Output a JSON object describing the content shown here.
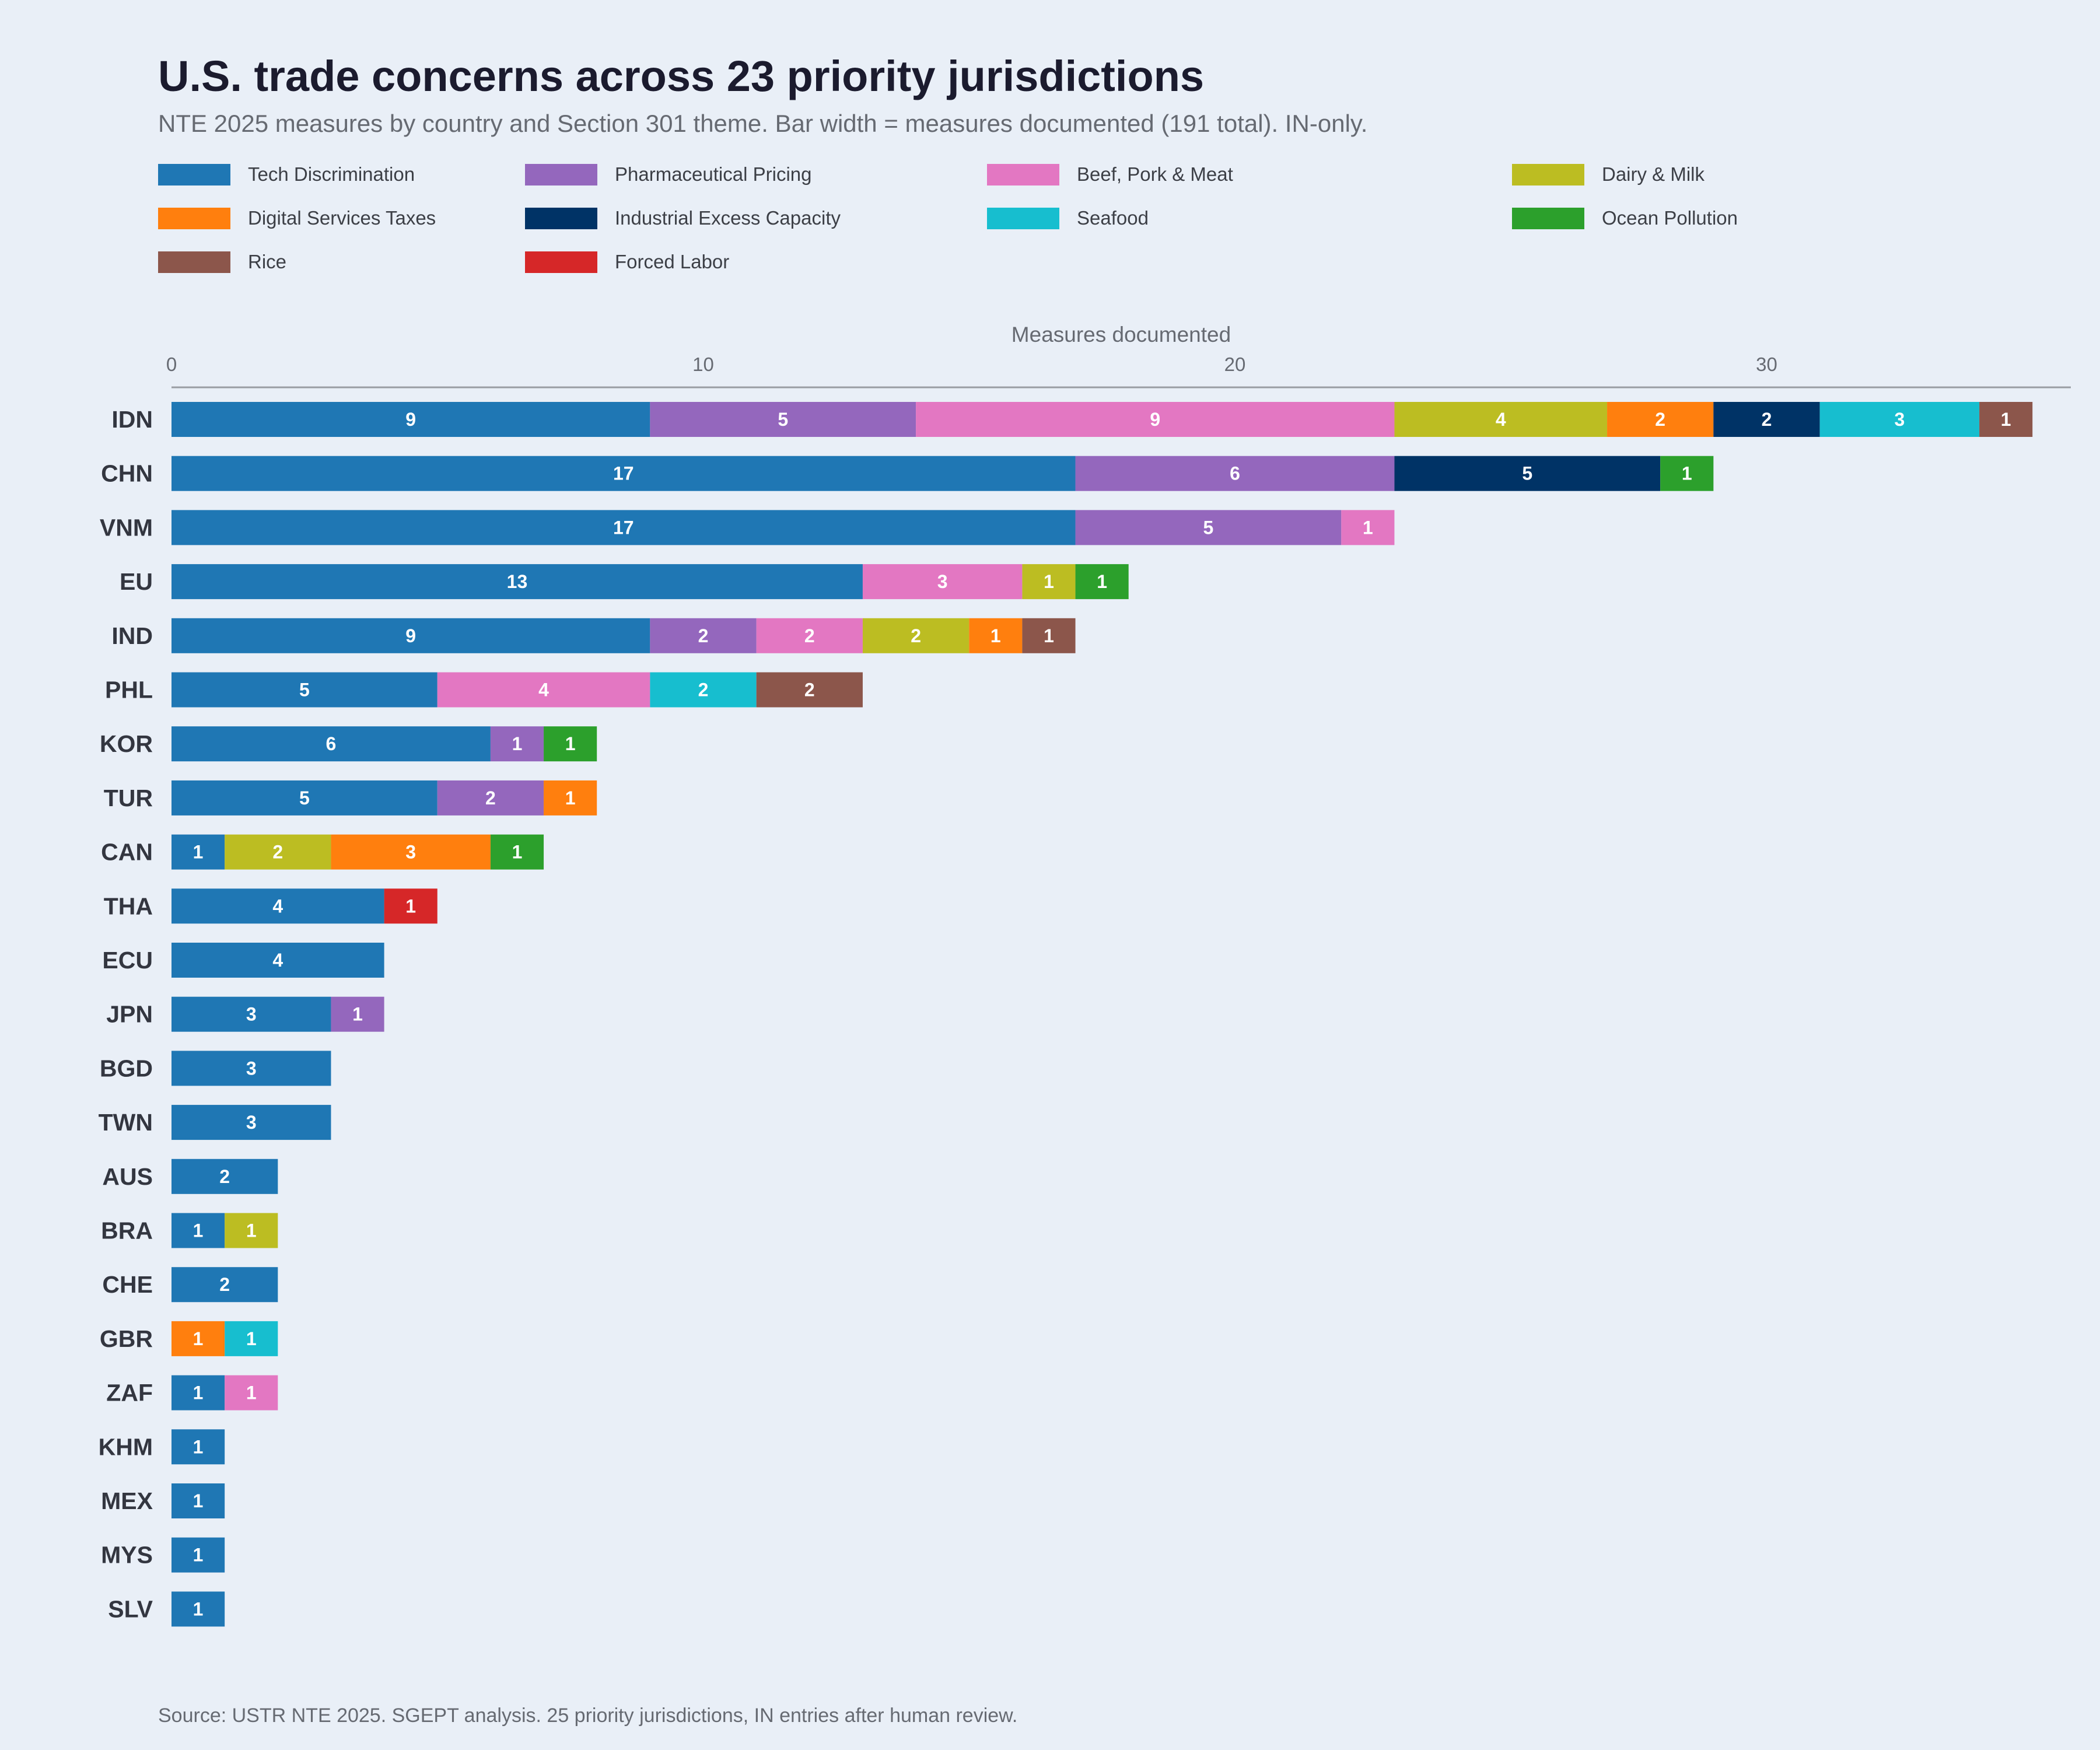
{
  "title": "U.S. trade concerns across 23 priority jurisdictions",
  "subtitle": "NTE 2025 measures by country and Section 301 theme. Bar width = measures documented (191 total). IN-only.",
  "source": "Source: USTR NTE 2025. SGEPT analysis. 25 priority jurisdictions, IN entries after human review.",
  "chart_data": {
    "type": "bar",
    "orientation": "horizontal",
    "stacked": true,
    "xlabel": "Measures documented",
    "xlim": [
      0,
      35.7
    ],
    "xticks": [
      0,
      10,
      20,
      30
    ],
    "legend_position": "top",
    "categories": [
      "IDN",
      "CHN",
      "VNM",
      "EU",
      "IND",
      "PHL",
      "KOR",
      "TUR",
      "CAN",
      "THA",
      "ECU",
      "JPN",
      "BGD",
      "TWN",
      "AUS",
      "BRA",
      "CHE",
      "GBR",
      "ZAF",
      "KHM",
      "MEX",
      "MYS",
      "SLV"
    ],
    "series": [
      {
        "name": "Tech Discrimination",
        "color": "#1f77b4",
        "values": [
          9,
          17,
          17,
          13,
          9,
          5,
          6,
          5,
          1,
          4,
          4,
          3,
          3,
          3,
          2,
          1,
          2,
          0,
          1,
          1,
          1,
          1,
          1
        ]
      },
      {
        "name": "Pharmaceutical Pricing",
        "color": "#9467bd",
        "values": [
          5,
          6,
          5,
          0,
          2,
          0,
          1,
          2,
          0,
          0,
          0,
          1,
          0,
          0,
          0,
          0,
          0,
          0,
          0,
          0,
          0,
          0,
          0
        ]
      },
      {
        "name": "Beef, Pork & Meat",
        "color": "#e377c2",
        "values": [
          9,
          0,
          1,
          3,
          2,
          4,
          0,
          0,
          0,
          0,
          0,
          0,
          0,
          0,
          0,
          0,
          0,
          0,
          1,
          0,
          0,
          0,
          0
        ]
      },
      {
        "name": "Dairy & Milk",
        "color": "#bcbd22",
        "values": [
          4,
          0,
          0,
          1,
          2,
          0,
          0,
          0,
          2,
          0,
          0,
          0,
          0,
          0,
          0,
          1,
          0,
          0,
          0,
          0,
          0,
          0,
          0
        ]
      },
      {
        "name": "Digital Services Taxes",
        "color": "#ff7f0e",
        "values": [
          2,
          0,
          0,
          0,
          1,
          0,
          0,
          1,
          3,
          0,
          0,
          0,
          0,
          0,
          0,
          0,
          0,
          1,
          0,
          0,
          0,
          0,
          0
        ]
      },
      {
        "name": "Industrial Excess Capacity",
        "color": "#003366",
        "values": [
          2,
          5,
          0,
          0,
          0,
          0,
          0,
          0,
          0,
          0,
          0,
          0,
          0,
          0,
          0,
          0,
          0,
          0,
          0,
          0,
          0,
          0,
          0
        ]
      },
      {
        "name": "Seafood",
        "color": "#17becf",
        "values": [
          3,
          0,
          0,
          0,
          0,
          2,
          0,
          0,
          0,
          0,
          0,
          0,
          0,
          0,
          0,
          0,
          0,
          1,
          0,
          0,
          0,
          0,
          0
        ]
      },
      {
        "name": "Ocean Pollution",
        "color": "#2ca02c",
        "values": [
          0,
          1,
          0,
          1,
          0,
          0,
          1,
          0,
          1,
          0,
          0,
          0,
          0,
          0,
          0,
          0,
          0,
          0,
          0,
          0,
          0,
          0,
          0
        ]
      },
      {
        "name": "Rice",
        "color": "#8c564b",
        "values": [
          1,
          0,
          0,
          0,
          1,
          2,
          0,
          0,
          0,
          0,
          0,
          0,
          0,
          0,
          0,
          0,
          0,
          0,
          0,
          0,
          0,
          0,
          0
        ]
      },
      {
        "name": "Forced Labor",
        "color": "#d62728",
        "values": [
          0,
          0,
          0,
          0,
          0,
          0,
          0,
          0,
          0,
          1,
          0,
          0,
          0,
          0,
          0,
          0,
          0,
          0,
          0,
          0,
          0,
          0,
          0
        ]
      }
    ]
  }
}
